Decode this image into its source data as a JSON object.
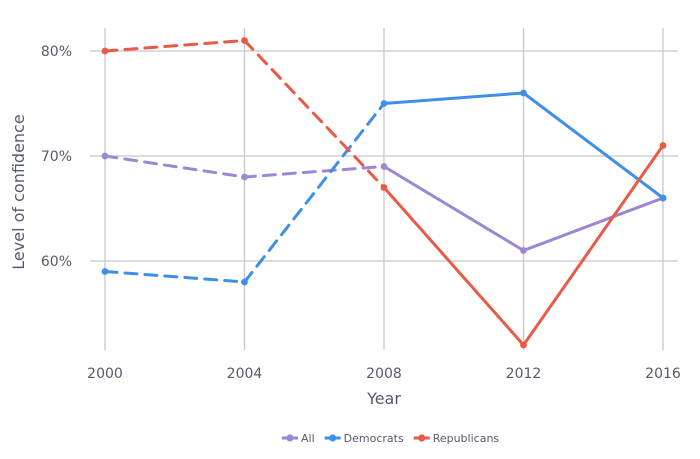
{
  "chart_data": {
    "type": "line",
    "title": "",
    "xlabel": "Year",
    "ylabel": "Level of confidence",
    "x": [
      2000,
      2004,
      2008,
      2012,
      2016
    ],
    "x_tick_labels": [
      "2000",
      "2004",
      "2008",
      "2012",
      "2016"
    ],
    "y_ticks": [
      60,
      70,
      80
    ],
    "y_tick_labels": [
      "60%",
      "70%",
      "80%"
    ],
    "ylim": [
      51,
      83
    ],
    "xlim": [
      2000,
      2016
    ],
    "grid": true,
    "legend_position": "bottom",
    "dashed_through_x": 2008,
    "series": [
      {
        "name": "All",
        "color": "#9b87d6",
        "values": [
          70,
          68,
          69,
          61,
          66
        ]
      },
      {
        "name": "Democrats",
        "color": "#3e8fe8",
        "values": [
          59,
          58,
          75,
          76,
          66
        ]
      },
      {
        "name": "Republicans",
        "color": "#eb5a46",
        "values": [
          80,
          81,
          67,
          52,
          71
        ]
      }
    ]
  }
}
